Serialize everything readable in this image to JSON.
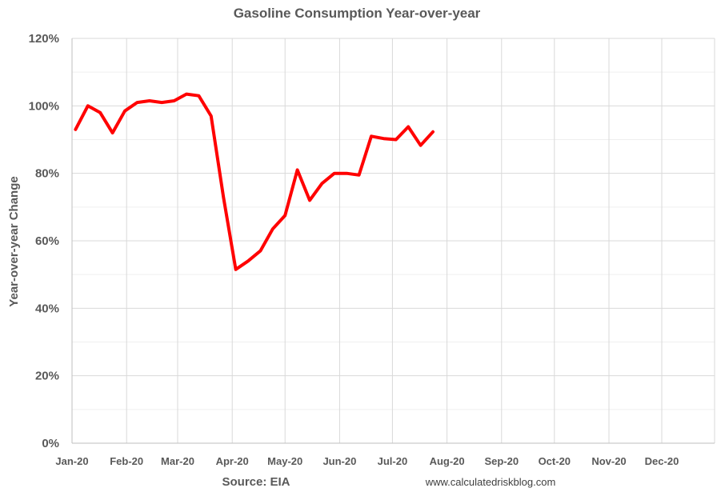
{
  "chart_data": {
    "type": "line",
    "title": "Gasoline Consumption Year-over-year",
    "xlabel": "",
    "ylabel": "Year-over-year Change",
    "ylim": [
      0,
      120
    ],
    "yticks": [
      "0%",
      "20%",
      "40%",
      "60%",
      "80%",
      "100%",
      "120%"
    ],
    "ytick_values": [
      0,
      20,
      40,
      60,
      80,
      100,
      120
    ],
    "minor_grid_values": [
      10,
      30,
      50,
      70,
      90,
      110
    ],
    "xlim": [
      "2020-01-01",
      "2020-12-31"
    ],
    "xticks": [
      "Jan-20",
      "Feb-20",
      "Mar-20",
      "Apr-20",
      "May-20",
      "Jun-20",
      "Jul-20",
      "Aug-20",
      "Sep-20",
      "Oct-20",
      "Nov-20",
      "Dec-20"
    ],
    "xtick_dates": [
      "2020-01-01",
      "2020-02-01",
      "2020-03-01",
      "2020-04-01",
      "2020-05-01",
      "2020-06-01",
      "2020-07-01",
      "2020-08-01",
      "2020-09-01",
      "2020-10-01",
      "2020-11-01",
      "2020-12-01"
    ],
    "grid": true,
    "legend": "none",
    "series": [
      {
        "color": "#ff0000",
        "x": [
          "2020-01-03",
          "2020-01-10",
          "2020-01-17",
          "2020-01-24",
          "2020-01-31",
          "2020-02-07",
          "2020-02-14",
          "2020-02-21",
          "2020-02-28",
          "2020-03-06",
          "2020-03-13",
          "2020-03-20",
          "2020-03-27",
          "2020-04-03",
          "2020-04-10",
          "2020-04-17",
          "2020-04-24",
          "2020-05-01",
          "2020-05-08",
          "2020-05-15",
          "2020-05-22",
          "2020-05-29",
          "2020-06-05",
          "2020-06-12",
          "2020-06-19",
          "2020-06-26",
          "2020-07-03",
          "2020-07-10",
          "2020-07-17",
          "2020-07-24"
        ],
        "values": [
          93,
          100,
          98,
          92,
          98.5,
          101,
          101.5,
          101,
          101.5,
          103.5,
          103,
          97,
          73,
          51.5,
          54,
          57,
          63.5,
          67.5,
          81,
          72,
          77,
          80,
          80,
          79.5,
          91,
          90.3,
          90,
          93.8,
          88.3,
          92.3
        ]
      }
    ]
  },
  "footer": {
    "source": "Source: EIA",
    "credit": "www.calculatedriskblog.com"
  }
}
